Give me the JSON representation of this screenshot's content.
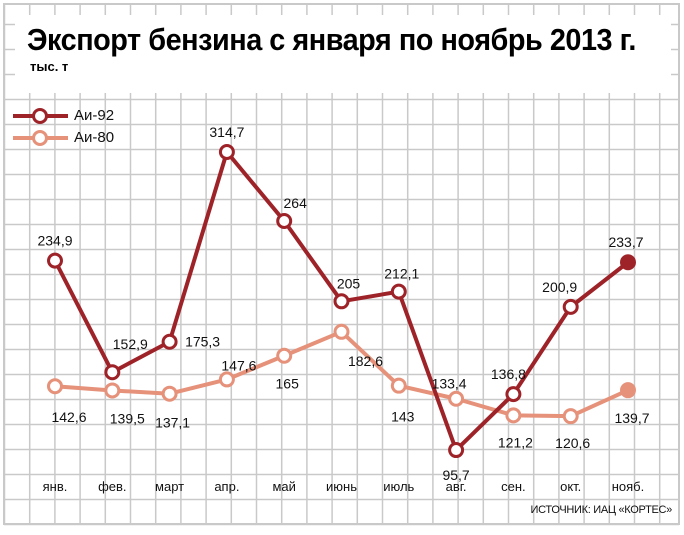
{
  "chart_data": {
    "type": "line",
    "title": "Экспорт бензина с января по ноябрь 2013 г.",
    "ylabel": "тыс. т",
    "xlabel": "",
    "categories": [
      "янв.",
      "фев.",
      "март",
      "апр.",
      "май",
      "июнь",
      "июль",
      "авг.",
      "сен.",
      "окт.",
      "нояб."
    ],
    "series": [
      {
        "name": "Аи-92",
        "color": "#9e2329",
        "values": [
          234.9,
          152.9,
          175.3,
          314.7,
          264,
          205,
          212.1,
          95.7,
          136.8,
          200.9,
          233.7
        ],
        "labels": [
          "234,9",
          "152,9",
          "175,3",
          "314,7",
          "264",
          "205",
          "212,1",
          "95,7",
          "136,8",
          "200,9",
          "233,7"
        ]
      },
      {
        "name": "Аи-80",
        "color": "#e6917a",
        "values": [
          142.6,
          139.5,
          137.1,
          147.6,
          165,
          182.6,
          143,
          133.4,
          121.2,
          120.6,
          139.7
        ],
        "labels": [
          "142,6",
          "139,5",
          "137,1",
          "147,6",
          "165",
          "182,6",
          "143",
          "133,4",
          "121,2",
          "120,6",
          "139,7"
        ]
      }
    ],
    "grid": true,
    "legend": "top-left",
    "source": "ИСТОЧНИК: ИАЦ «КОРТЕС»"
  }
}
